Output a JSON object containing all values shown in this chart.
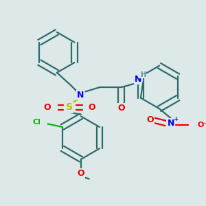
{
  "background_color": "#dde8e8",
  "atom_colors": {
    "C": "#2d6b6b",
    "N": "#0000ee",
    "O": "#ee0000",
    "S": "#bbbb00",
    "Cl": "#00bb00",
    "H": "#5588aa"
  },
  "bond_color": "#2d6b6b",
  "line_width": 1.6,
  "figsize": [
    3.0,
    3.0
  ],
  "dpi": 100
}
